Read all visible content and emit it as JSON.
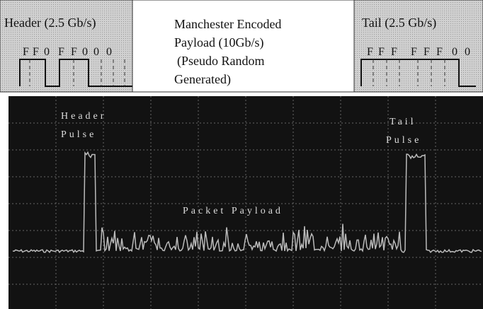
{
  "header": {
    "title": "Header (2.5 Gb/s)",
    "bits": [
      "F",
      "F",
      "0",
      "F",
      "F",
      "0",
      "0",
      "0"
    ]
  },
  "payload": {
    "lines": [
      "Manchester Encoded",
      "Payload (10Gb/s)",
      "(Pseudo Random",
      "Generated)"
    ]
  },
  "tail": {
    "title": "Tail (2.5 Gb/s)",
    "bits": [
      "F",
      "F",
      "F",
      "F",
      "F",
      "F",
      "0",
      "0"
    ]
  },
  "scope": {
    "header_pulse": [
      "Header",
      "Pulse"
    ],
    "tail_pulse": [
      "Tail",
      "Pulse"
    ],
    "packet_payload": "Packet Payload"
  }
}
